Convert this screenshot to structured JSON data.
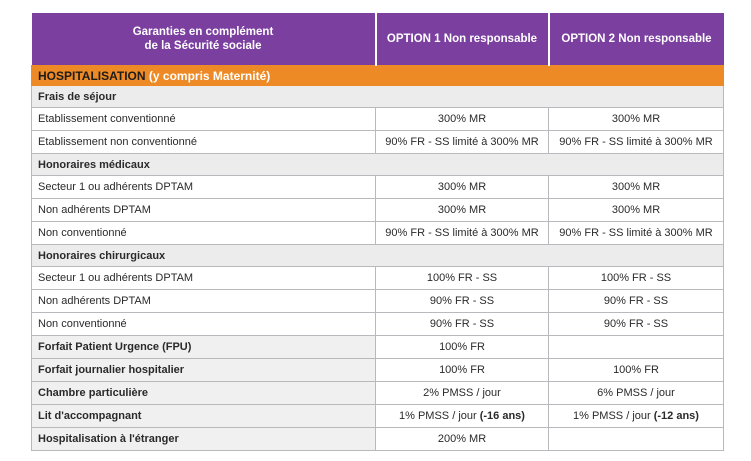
{
  "header": {
    "label_line1": "Garanties en complément",
    "label_line2": "de la Sécurité sociale",
    "option1": "OPTION 1 Non responsable",
    "option2": "OPTION 2 Non responsable"
  },
  "section": {
    "title": "HOSPITALISATION",
    "subtitle": " (y compris Maternité)"
  },
  "groups": {
    "frais": "Frais de séjour",
    "honoraires_medicaux": "Honoraires médicaux",
    "honoraires_chirurgicaux": "Honoraires chirurgicaux"
  },
  "rows": [
    {
      "label": "Etablissement conventionné",
      "o1": "300% MR",
      "o2": "300% MR"
    },
    {
      "label": "Etablissement non conventionné",
      "o1": "90% FR - SS limité à 300% MR",
      "o2": "90% FR - SS limité à 300% MR"
    },
    {
      "label": "Secteur 1 ou adhérents DPTAM",
      "o1": "300% MR",
      "o2": "300% MR"
    },
    {
      "label": "Non adhérents DPTAM",
      "o1": "300% MR",
      "o2": "300% MR"
    },
    {
      "label": "Non conventionné",
      "o1": "90% FR - SS limité à 300% MR",
      "o2": "90% FR - SS limité à 300% MR"
    },
    {
      "label": "Secteur 1 ou adhérents DPTAM",
      "o1": "100% FR - SS",
      "o2": "100% FR - SS"
    },
    {
      "label": "Non adhérents DPTAM",
      "o1": "90% FR - SS",
      "o2": "90% FR - SS"
    },
    {
      "label": "Non conventionné",
      "o1": "90% FR - SS",
      "o2": "90% FR - SS"
    },
    {
      "label": "Forfait Patient Urgence (FPU)",
      "o1": "100% FR",
      "o2": ""
    },
    {
      "label": "Forfait journalier hospitalier",
      "o1": "100% FR",
      "o2": "100% FR"
    },
    {
      "label": "Chambre particulière",
      "o1": "2% PMSS / jour",
      "o2": "6% PMSS / jour"
    },
    {
      "label": "Lit d'accompagnant",
      "o1": "1% PMSS / jour ",
      "o1_bold": "(-16 ans)",
      "o2": "1% PMSS / jour ",
      "o2_bold": "(-12 ans)"
    },
    {
      "label": "Hospitalisation à l'étranger",
      "o1": "200% MR",
      "o2": ""
    }
  ]
}
